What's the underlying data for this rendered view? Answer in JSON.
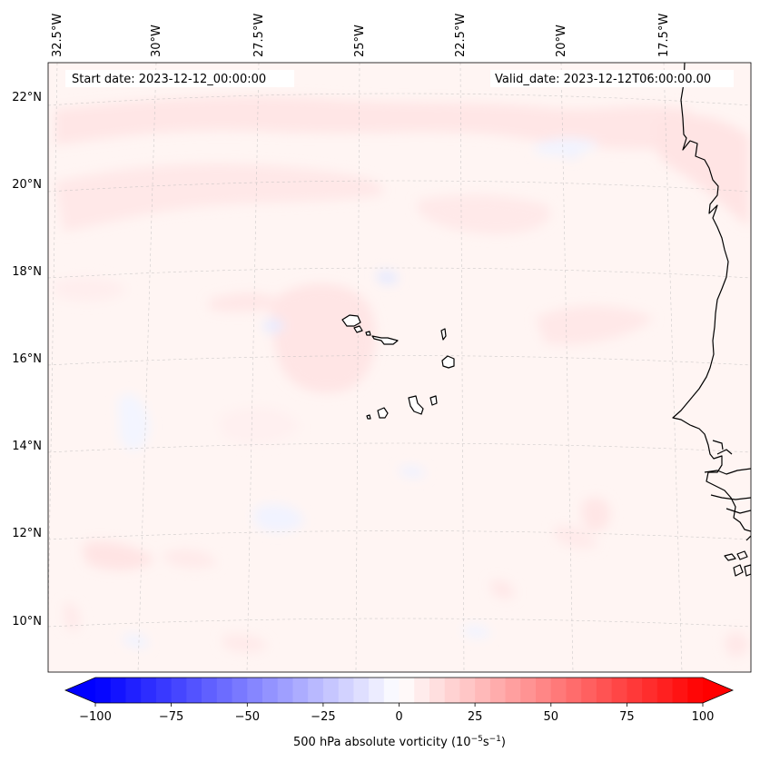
{
  "map": {
    "start_date_text": "Start date: 2023-12-12_00:00:00",
    "valid_date_text": "Valid_date: 2023-12-12T06:00:00.00",
    "longitude_labels": [
      "32.5°W",
      "30°W",
      "27.5°W",
      "25°W",
      "22.5°W",
      "20°W",
      "17.5°W"
    ],
    "latitude_labels": [
      "22°N",
      "20°N",
      "18°N",
      "16°N",
      "14°N",
      "12°N",
      "10°N"
    ],
    "field": "500 hPa absolute vorticity",
    "background_color": "#fff5f3"
  },
  "colorbar": {
    "label_main": "500 hPa absolute vorticity (10",
    "label_exp1": "−5",
    "label_mid": "s",
    "label_exp2": "−1",
    "label_end": ")",
    "tick_labels": [
      "−100",
      "−75",
      "−50",
      "−25",
      "0",
      "25",
      "50",
      "75",
      "100"
    ],
    "min": -100,
    "max": 100,
    "step": 5,
    "cmap": "bwr",
    "extend": "both"
  }
}
